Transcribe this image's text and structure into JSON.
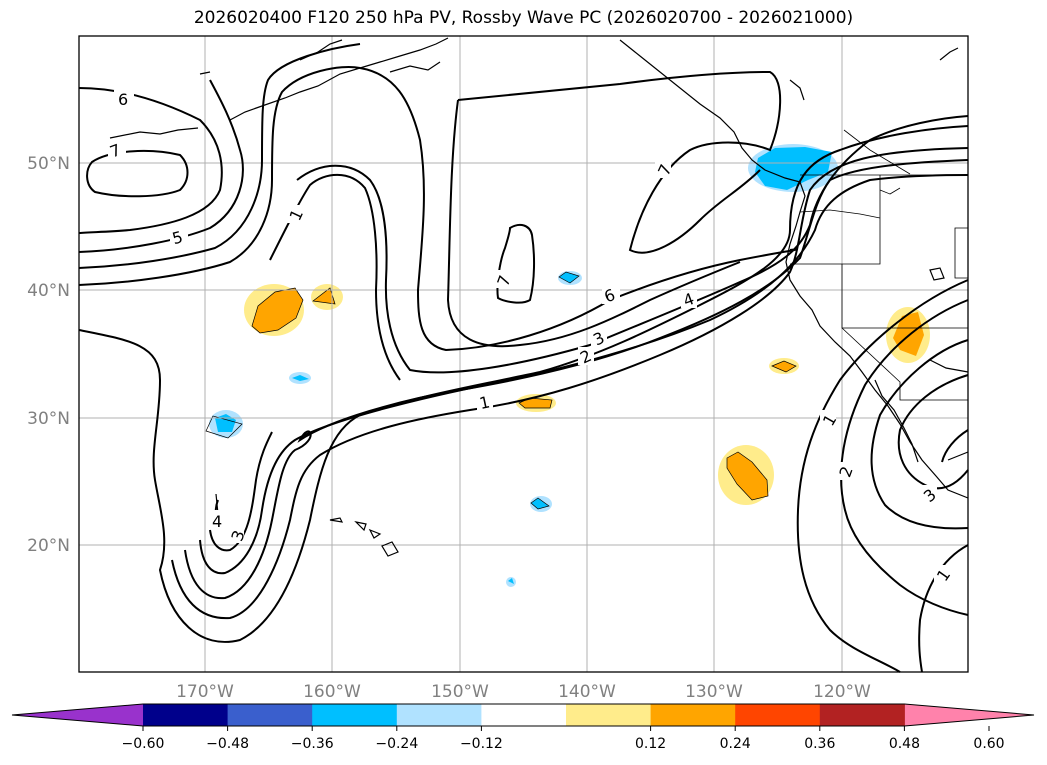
{
  "title": "2026020400 F120 250 hPa PV, Rossby Wave PC (2026020700 - 2026021000)",
  "map": {
    "lon_labels": [
      "170°W",
      "160°W",
      "150°W",
      "140°W",
      "130°W",
      "120°W"
    ],
    "lat_labels": [
      "50°N",
      "40°N",
      "30°N",
      "20°N"
    ],
    "contour_labels": [
      "6",
      "7",
      "5",
      "1",
      "4",
      "3",
      "7",
      "6",
      "4",
      "3",
      "2",
      "1",
      "7",
      "1",
      "2",
      "3",
      "1"
    ]
  },
  "colorbar": {
    "ticks": [
      "−0.60",
      "−0.48",
      "−0.36",
      "−0.24",
      "−0.12",
      "0.12",
      "0.24",
      "0.36",
      "0.48",
      "0.60"
    ],
    "colors": [
      "#9932cc",
      "#00008b",
      "#3a5fcd",
      "#00bfff",
      "#b0e2ff",
      "#ffffff",
      "#ffec8b",
      "#ffa500",
      "#ff4500",
      "#b22222",
      "#ff82ab"
    ]
  },
  "colors": {
    "positive_fill": "#ffa500",
    "positive_halo": "#ffec8b",
    "negative_fill": "#00bfff",
    "negative_halo": "#b0e2ff",
    "grid": "#b0b0b0",
    "tick_label": "#808080"
  }
}
